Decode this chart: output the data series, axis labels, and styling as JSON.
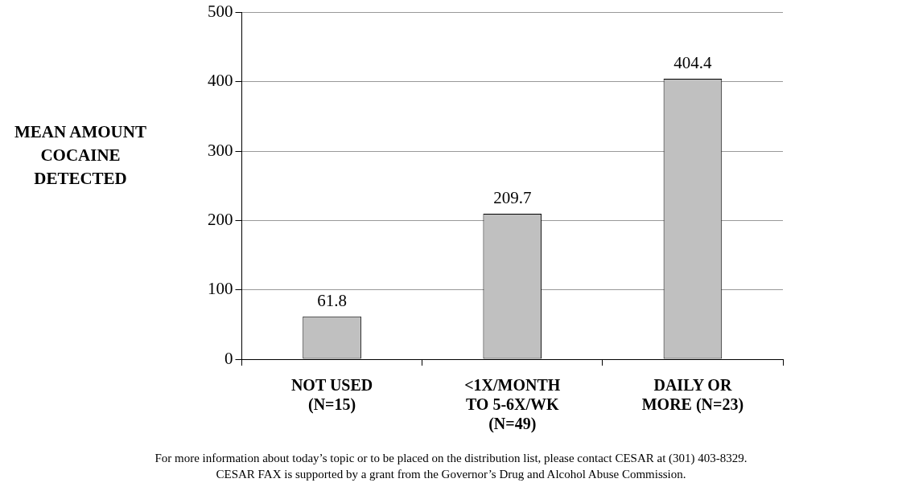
{
  "chart_data": {
    "type": "bar",
    "ylabel": "MEAN AMOUNT COCAINE DETECTED",
    "categories": [
      "NOT USED (N=15)",
      "<1X/MONTH TO 5-6X/WK (N=49)",
      "DAILY OR MORE (N=23)"
    ],
    "values": [
      61.8,
      209.7,
      404.4
    ],
    "color": "#c0c0c0",
    "ylim": [
      0,
      500
    ],
    "yticks": [
      0,
      100,
      200,
      300,
      400,
      500
    ],
    "grid": "y",
    "data_labels": true,
    "legend": false,
    "annotations": [
      "For more information about today’s topic or to be placed on the distribution list, please contact CESAR at (301) 403-8329.",
      "CESAR FAX is supported by a grant from the Governor’s Drug and Alcohol Abuse Commission."
    ]
  }
}
